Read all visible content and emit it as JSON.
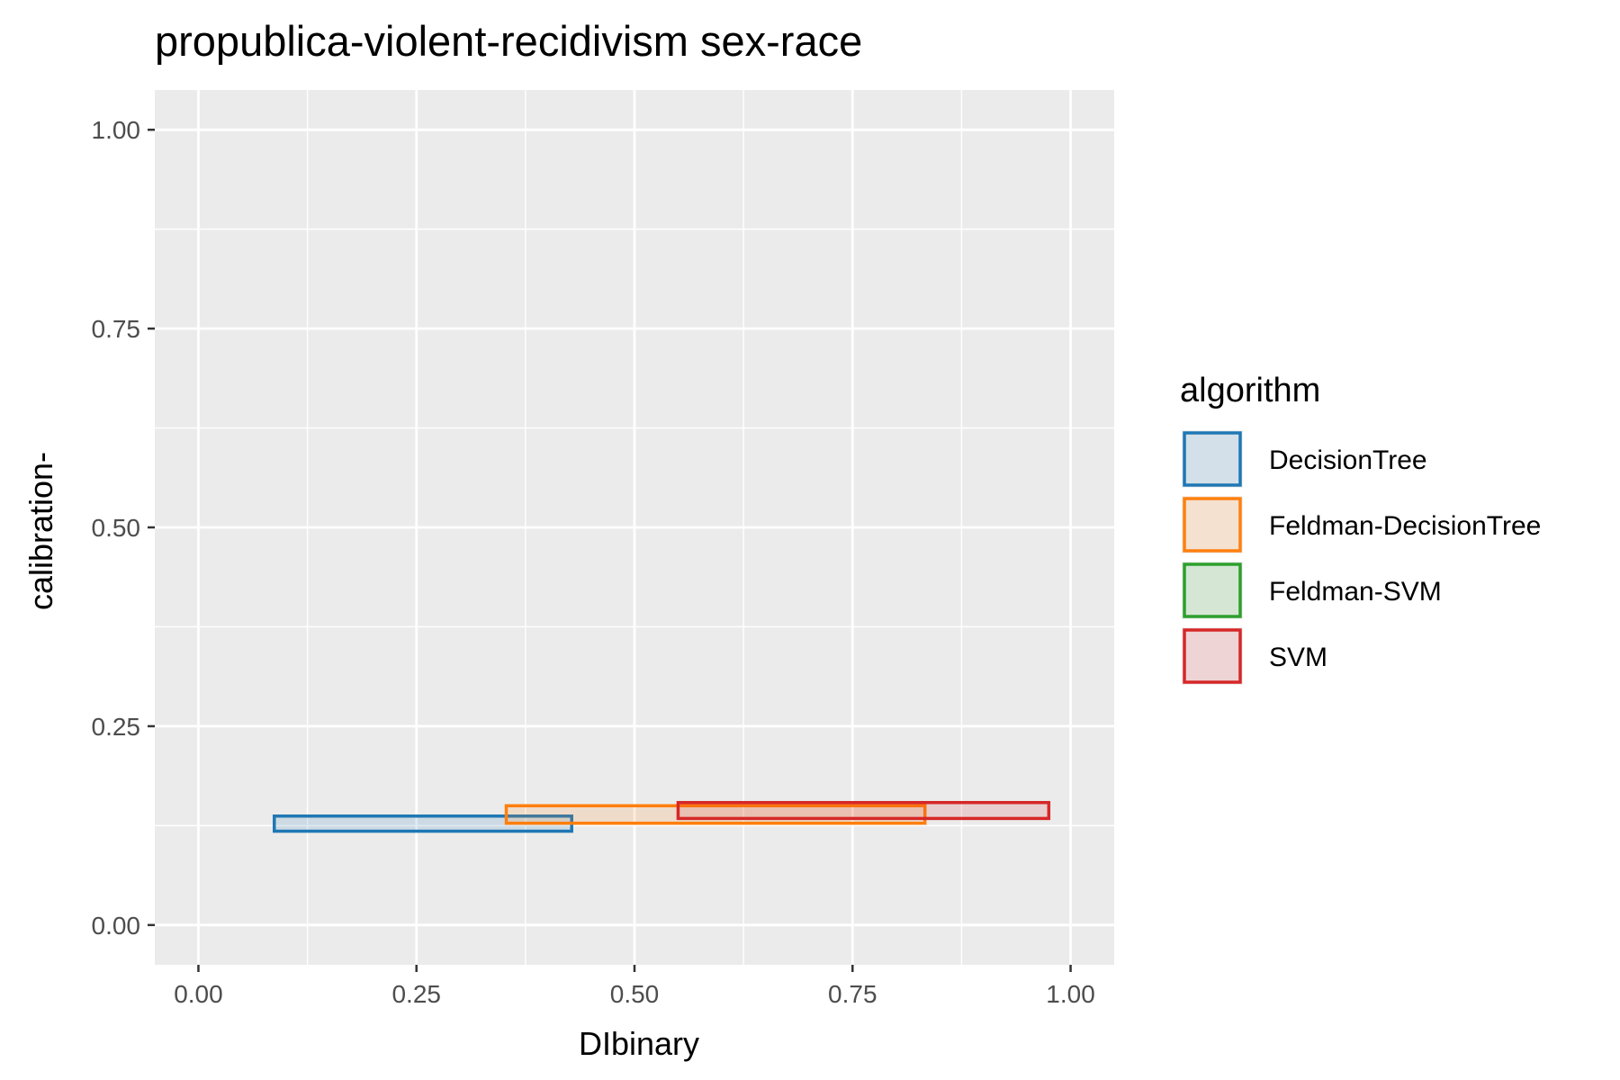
{
  "chart_data": {
    "type": "rect",
    "title": "propublica-violent-recidivism sex-race",
    "xlabel": "DIbinary",
    "ylabel": "calibration-",
    "xlim": [
      -0.05,
      1.05
    ],
    "ylim": [
      -0.05,
      1.05
    ],
    "x_ticks": [
      {
        "value": 0.0,
        "label": "0.00"
      },
      {
        "value": 0.25,
        "label": "0.25"
      },
      {
        "value": 0.5,
        "label": "0.50"
      },
      {
        "value": 0.75,
        "label": "0.75"
      },
      {
        "value": 1.0,
        "label": "1.00"
      }
    ],
    "y_ticks": [
      {
        "value": 0.0,
        "label": "0.00"
      },
      {
        "value": 0.25,
        "label": "0.25"
      },
      {
        "value": 0.5,
        "label": "0.50"
      },
      {
        "value": 0.75,
        "label": "0.75"
      },
      {
        "value": 1.0,
        "label": "1.00"
      }
    ],
    "grid": true,
    "legend": {
      "title": "algorithm",
      "position": "right"
    },
    "series": [
      {
        "name": "DecisionTree",
        "color": "#1f77b4",
        "xmin": 0.087,
        "xmax": 0.428,
        "ymin": 0.118,
        "ymax": 0.137
      },
      {
        "name": "Feldman-DecisionTree",
        "color": "#ff7f0e",
        "xmin": 0.353,
        "xmax": 0.833,
        "ymin": 0.128,
        "ymax": 0.15
      },
      {
        "name": "Feldman-SVM",
        "color": "#2ca02c"
      },
      {
        "name": "SVM",
        "color": "#d62728",
        "xmin": 0.55,
        "xmax": 0.975,
        "ymin": 0.134,
        "ymax": 0.154
      }
    ]
  }
}
